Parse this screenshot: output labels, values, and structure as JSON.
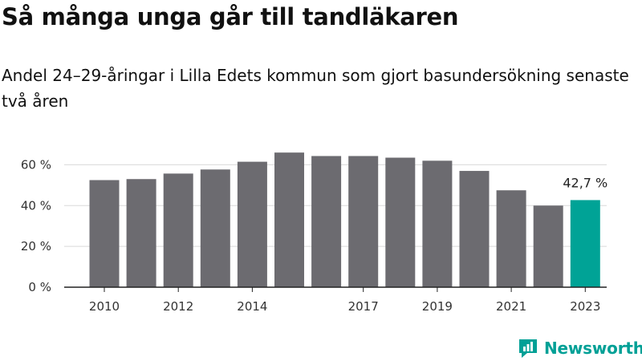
{
  "title": "Så många unga går till tandläkaren",
  "subtitle": "Andel 24–29-åringar i Lilla Edets kommun som gjort basundersökning senaste två åren",
  "brand": "Newsworthy",
  "colors": {
    "bar": "#6c6b70",
    "highlight": "#00a396",
    "axis": "#222222",
    "grid": "#d9d9d9",
    "brand": "#00a096"
  },
  "chart_data": {
    "type": "bar",
    "categories": [
      "2010",
      "2011",
      "2012",
      "2013",
      "2014",
      "2015",
      "2016",
      "2017",
      "2018",
      "2019",
      "2020",
      "2021",
      "2022",
      "2023"
    ],
    "values": [
      52.5,
      53,
      55.7,
      57.7,
      61.5,
      66,
      64.3,
      64.3,
      63.5,
      62,
      57,
      47.5,
      40,
      42.7
    ],
    "highlight_index": 13,
    "data_labels": [
      {
        "index": 13,
        "text": "42,7 %"
      }
    ],
    "x_tick_labels": [
      "2010",
      "",
      "2012",
      "",
      "2014",
      "",
      "",
      "2017",
      "",
      "2019",
      "",
      "2021",
      "",
      "2023"
    ],
    "y_ticks": [
      0,
      20,
      40,
      60
    ],
    "y_tick_labels": [
      "0 %",
      "20 %",
      "40 %",
      "60 %"
    ],
    "ylim": [
      0,
      70
    ],
    "grid": true
  }
}
